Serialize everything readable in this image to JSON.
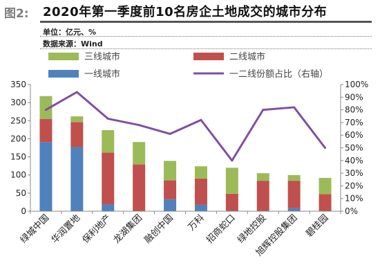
{
  "header": {
    "fig_label": "图2:",
    "title": "2020年第一季度前10名房企土地成交的城市分布",
    "unit": "单位：亿元、%",
    "source": "数据来源：Wind"
  },
  "colors": {
    "tier1": "#4f81bd",
    "tier2": "#c0504d",
    "tier3": "#9bbb59",
    "line": "#7f4fa1"
  },
  "chart_data": {
    "type": "bar",
    "stacked": true,
    "categories": [
      "绿城中国",
      "华润置地",
      "保利地产",
      "龙湖集团",
      "融创中国",
      "万科",
      "招商蛇口",
      "绿地控股",
      "旭辉控股集团",
      "碧桂园"
    ],
    "series": [
      {
        "name": "一线城市",
        "type": "bar",
        "axis": "left",
        "values": [
          191,
          177,
          19,
          0,
          33,
          18,
          0,
          0,
          8,
          0
        ]
      },
      {
        "name": "二线城市",
        "type": "bar",
        "axis": "left",
        "values": [
          64,
          69,
          143,
          129,
          52,
          72,
          48,
          84,
          76,
          47
        ]
      },
      {
        "name": "三线城市",
        "type": "bar",
        "axis": "left",
        "values": [
          63,
          16,
          62,
          62,
          54,
          34,
          72,
          21,
          16,
          45
        ]
      },
      {
        "name": "一二线份额占比（右轴）",
        "type": "line",
        "axis": "right",
        "values": [
          80,
          94,
          73,
          68,
          61,
          72,
          40,
          80,
          82,
          50
        ]
      }
    ],
    "y_left": {
      "min": 0,
      "max": 350,
      "step": 50
    },
    "y_right": {
      "min": 0,
      "max": 100,
      "step": 10,
      "suffix": "%"
    },
    "legend": [
      {
        "label": "三线城市",
        "series": 2,
        "kind": "bar"
      },
      {
        "label": "二线城市",
        "series": 1,
        "kind": "bar"
      },
      {
        "label": "一线城市",
        "series": 0,
        "kind": "bar"
      },
      {
        "label": "一二线份额占比（右轴）",
        "series": 3,
        "kind": "line"
      }
    ],
    "grid": false
  }
}
